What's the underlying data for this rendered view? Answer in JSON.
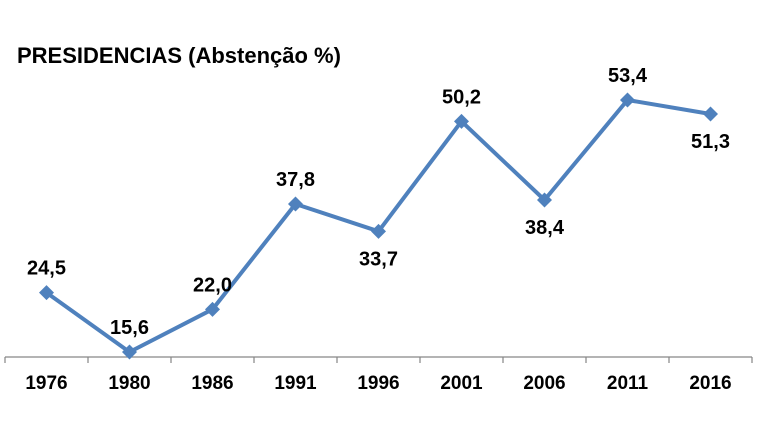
{
  "chart_data": {
    "type": "line",
    "title": "PRESIDENCIAS (Abstenção %)",
    "xlabel": "",
    "ylabel": "",
    "categories": [
      "1976",
      "1980",
      "1986",
      "1991",
      "1996",
      "2001",
      "2006",
      "2011",
      "2016"
    ],
    "series": [
      {
        "values": [
          24.5,
          15.6,
          22.0,
          37.8,
          33.7,
          50.2,
          38.4,
          53.4,
          51.3
        ],
        "labels": [
          "24,5",
          "15,6",
          "22,0",
          "37,8",
          "33,7",
          "50,2",
          "38,4",
          "53,4",
          "51,3"
        ],
        "color": "#4F81BD"
      }
    ],
    "ylim": [
      15.6,
      53.4
    ],
    "grid": false,
    "legend": "none"
  }
}
